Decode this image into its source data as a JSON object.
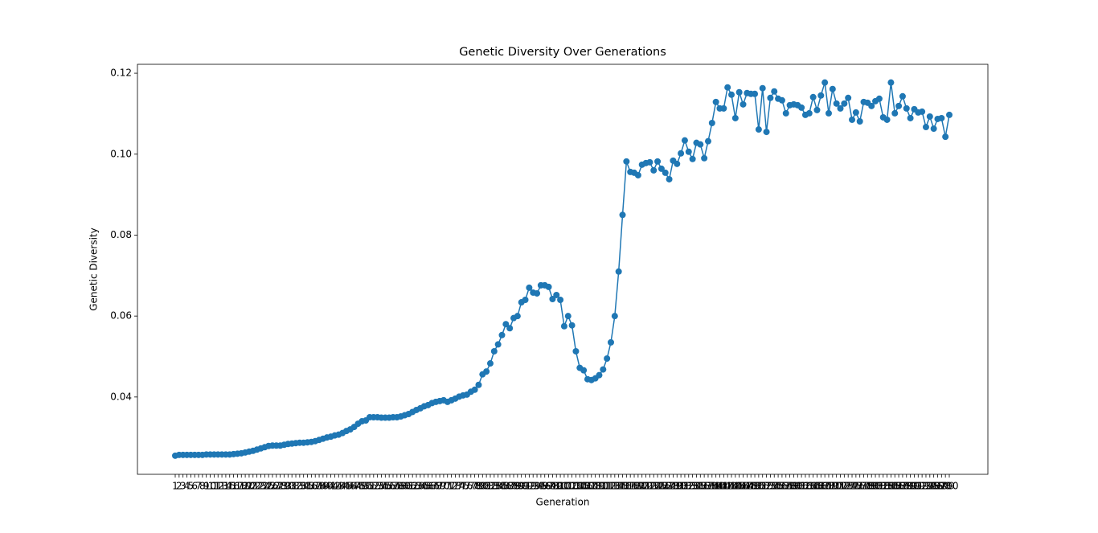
{
  "chart_data": {
    "type": "line",
    "title": "Genetic Diversity Over Generations",
    "x_label": "Generation",
    "y_label": "Genetic Diversity",
    "categories": [
      "1",
      "2",
      "3",
      "4",
      "5",
      "6",
      "7",
      "8",
      "9",
      "10",
      "11",
      "12",
      "13",
      "14",
      "15",
      "16",
      "17",
      "18",
      "19",
      "20",
      "21",
      "22",
      "23",
      "24",
      "25",
      "26",
      "27",
      "28",
      "29",
      "30",
      "31",
      "32",
      "33",
      "34",
      "35",
      "36",
      "37",
      "38",
      "39",
      "40",
      "41",
      "42",
      "43",
      "44",
      "45",
      "46",
      "47",
      "48",
      "49",
      "50",
      "51",
      "52",
      "53",
      "54",
      "55",
      "56",
      "57",
      "58",
      "59",
      "60",
      "61",
      "62",
      "63",
      "64",
      "65",
      "66",
      "67",
      "68",
      "69",
      "70",
      "71",
      "72",
      "73",
      "74",
      "75",
      "76",
      "77",
      "78",
      "79",
      "80",
      "81",
      "82",
      "83",
      "84",
      "85",
      "86",
      "87",
      "88",
      "89",
      "90",
      "91",
      "92",
      "93",
      "94",
      "95",
      "96",
      "97",
      "98",
      "99",
      "100",
      "101",
      "102",
      "103",
      "104",
      "105",
      "106",
      "107",
      "108",
      "109",
      "110",
      "111",
      "112",
      "113",
      "114",
      "115",
      "116",
      "117",
      "118",
      "119",
      "120",
      "121",
      "122",
      "123",
      "124",
      "125",
      "126",
      "127",
      "128",
      "129",
      "130",
      "131",
      "132",
      "133",
      "134",
      "135",
      "136",
      "137",
      "138",
      "139",
      "140",
      "141",
      "142",
      "143",
      "144",
      "145",
      "146",
      "147",
      "148",
      "149",
      "150",
      "151",
      "152",
      "153",
      "154",
      "155",
      "156",
      "157",
      "158",
      "159",
      "160",
      "161",
      "162",
      "163",
      "164",
      "165",
      "166",
      "167",
      "168",
      "169",
      "170",
      "171",
      "172",
      "173",
      "174",
      "175",
      "176",
      "177",
      "178",
      "179",
      "180",
      "181",
      "182",
      "183",
      "184",
      "185",
      "186",
      "187",
      "188",
      "189",
      "190",
      "191",
      "192",
      "193",
      "194",
      "195",
      "196",
      "197",
      "198",
      "199",
      "200"
    ],
    "series": [
      {
        "name": "Genetic Diversity",
        "color": "#1f77b4",
        "values": [
          0.0255,
          0.0257,
          0.0257,
          0.0257,
          0.0257,
          0.0257,
          0.0257,
          0.0257,
          0.0258,
          0.0258,
          0.0258,
          0.0258,
          0.0258,
          0.0258,
          0.0258,
          0.0259,
          0.026,
          0.0261,
          0.0263,
          0.0265,
          0.0267,
          0.027,
          0.0273,
          0.0276,
          0.0279,
          0.028,
          0.028,
          0.028,
          0.0282,
          0.0284,
          0.0285,
          0.0286,
          0.0287,
          0.0287,
          0.0288,
          0.0289,
          0.0291,
          0.0294,
          0.0297,
          0.03,
          0.0302,
          0.0305,
          0.0307,
          0.0311,
          0.0316,
          0.032,
          0.0326,
          0.0334,
          0.034,
          0.0342,
          0.035,
          0.035,
          0.035,
          0.0349,
          0.0349,
          0.0349,
          0.035,
          0.035,
          0.0352,
          0.0355,
          0.0358,
          0.0363,
          0.0368,
          0.0372,
          0.0377,
          0.038,
          0.0385,
          0.0388,
          0.039,
          0.0392,
          0.0388,
          0.0392,
          0.0396,
          0.0401,
          0.0404,
          0.0406,
          0.0413,
          0.0418,
          0.043,
          0.0456,
          0.0463,
          0.0483,
          0.0513,
          0.053,
          0.0553,
          0.058,
          0.057,
          0.0595,
          0.06,
          0.0634,
          0.064,
          0.067,
          0.0658,
          0.0656,
          0.0676,
          0.0676,
          0.0672,
          0.0642,
          0.0652,
          0.064,
          0.0575,
          0.06,
          0.0577,
          0.0513,
          0.0472,
          0.0466,
          0.0444,
          0.0442,
          0.0446,
          0.0454,
          0.0468,
          0.0495,
          0.0535,
          0.06,
          0.071,
          0.085,
          0.0982,
          0.0956,
          0.0954,
          0.0948,
          0.0974,
          0.0978,
          0.098,
          0.096,
          0.0982,
          0.0964,
          0.0954,
          0.0938,
          0.0984,
          0.0976,
          0.1002,
          0.1034,
          0.1006,
          0.0988,
          0.1028,
          0.1024,
          0.099,
          0.1032,
          0.1077,
          0.1129,
          0.1113,
          0.1113,
          0.1165,
          0.1147,
          0.1089,
          0.1153,
          0.1123,
          0.1151,
          0.1149,
          0.1149,
          0.1061,
          0.1163,
          0.1055,
          0.1139,
          0.1155,
          0.1137,
          0.1133,
          0.1101,
          0.1121,
          0.1123,
          0.1121,
          0.1115,
          0.1097,
          0.1101,
          0.1141,
          0.1109,
          0.1145,
          0.1177,
          0.1101,
          0.1161,
          0.1125,
          0.1113,
          0.1125,
          0.1139,
          0.1085,
          0.1103,
          0.1081,
          0.1129,
          0.1127,
          0.1119,
          0.1131,
          0.1137,
          0.1091,
          0.1085,
          0.1177,
          0.1101,
          0.1119,
          0.1143,
          0.1113,
          0.1089,
          0.1111,
          0.1103,
          0.1105,
          0.1067,
          0.1093,
          0.1063,
          0.1087,
          0.1089,
          0.1043,
          0.1097
        ]
      }
    ],
    "ylim": [
      0.0209,
      0.1222
    ],
    "yticks": [
      0.04,
      0.06,
      0.08,
      {
        "value": 0.1,
        "label": "0.10"
      },
      0.12
    ],
    "grid": false
  }
}
